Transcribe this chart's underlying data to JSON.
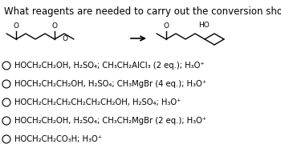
{
  "title": "What reagents are needed to carry out the conversion shown?",
  "title_fontsize": 8.5,
  "options": [
    "HOCH₂CH₂OH, H₂SO₄; CH₃CH₂AlCl₃ (2 eq.); H₃O⁺",
    "HOCH₂CH₂CH₂OH, H₂SO₄; CH₃MgBr (4 eq.); H₃O⁺",
    "HOCH₂CH₂CH₂CH₂CH₂CH₂OH, H₂SO₄; H₃O⁺",
    "HOCH₂CH₂OH, H₂SO₄; CH₃CH₂MgBr (2 eq.); H₃O⁺",
    "HOCH₂CH₂CO₃H; H₃O⁺"
  ],
  "option_fontsize": 7.2,
  "background_color": "#ffffff",
  "text_color": "#000000"
}
